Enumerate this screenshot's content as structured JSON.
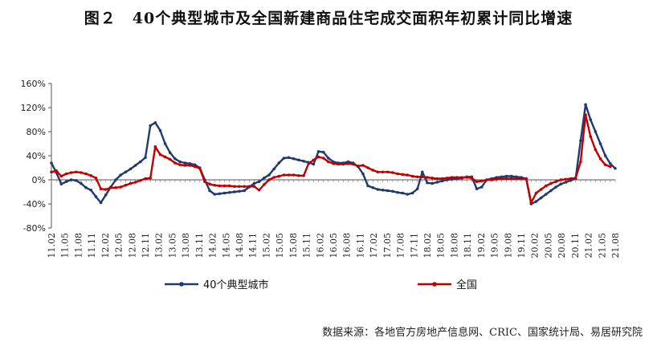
{
  "title": "图２　40个典型城市及全国新建商品住宅成交面积年初累计同比增速",
  "source": "数据来源：各地官方房地产信息网、CRIC、国家统计局、易居研究院",
  "colors": {
    "series1": "#1F3A6E",
    "series2": "#C00000"
  },
  "chart_data": {
    "type": "line",
    "title": "图２　40个典型城市及全国新建商品住宅成交面积年初累计同比增速",
    "xlabel": "",
    "ylabel": "",
    "ylim": [
      -80,
      160
    ],
    "yticks": [
      "160%",
      "120%",
      "80%",
      "40%",
      "0%",
      "-40%",
      "-80%"
    ],
    "grid": false,
    "legend": "bottom",
    "x_labels": [
      "11.02",
      "11.05",
      "11.08",
      "11.11",
      "12.02",
      "12.05",
      "12.08",
      "12.11",
      "13.02",
      "13.05",
      "13.08",
      "13.11",
      "14.02",
      "14.05",
      "14.08",
      "14.11",
      "15.02",
      "15.05",
      "15.08",
      "15.11",
      "16.02",
      "16.05",
      "16.08",
      "16.11",
      "17.02",
      "17.05",
      "17.08",
      "17.11",
      "18.02",
      "18.05",
      "18.08",
      "18.11",
      "19.02",
      "19.05",
      "19.08",
      "19.11",
      "20.02",
      "20.05",
      "20.08",
      "20.11",
      "21.02",
      "21.05",
      "21.08"
    ],
    "series": [
      {
        "name": "40个典型城市",
        "values": [
          28,
          12,
          -7,
          -3,
          0,
          -1,
          -6,
          -13,
          -17,
          -28,
          -38,
          -25,
          -12,
          0,
          8,
          13,
          18,
          24,
          30,
          37,
          90,
          95,
          82,
          60,
          45,
          35,
          30,
          28,
          27,
          25,
          20,
          0,
          -18,
          -24,
          -23,
          -22,
          -21,
          -20,
          -19,
          -18,
          -12,
          -6,
          -3,
          3,
          8,
          18,
          28,
          36,
          37,
          35,
          33,
          31,
          29,
          26,
          47,
          46,
          36,
          30,
          28,
          28,
          30,
          28,
          22,
          10,
          -10,
          -13,
          -16,
          -17,
          -18,
          -19,
          -21,
          -22,
          -24,
          -22,
          -15,
          13,
          -5,
          -6,
          -4,
          -2,
          0,
          1,
          2,
          3,
          5,
          5,
          -15,
          -12,
          0,
          2,
          4,
          5,
          6,
          6,
          5,
          4,
          2,
          -40,
          -36,
          -30,
          -24,
          -18,
          -12,
          -7,
          -4,
          -1,
          2,
          65,
          125,
          100,
          80,
          60,
          40,
          27,
          19
        ]
      },
      {
        "name": "全国",
        "values": [
          13,
          15,
          6,
          10,
          12,
          13,
          12,
          10,
          7,
          3,
          -15,
          -16,
          -13,
          -13,
          -12,
          -9,
          -6,
          -4,
          -1,
          2,
          3,
          55,
          42,
          38,
          34,
          28,
          25,
          24,
          24,
          22,
          19,
          -3,
          -7,
          -9,
          -10,
          -10,
          -10,
          -11,
          -11,
          -11,
          -11,
          -11,
          -17,
          -8,
          0,
          4,
          6,
          8,
          8,
          8,
          7,
          7,
          27,
          33,
          38,
          36,
          30,
          27,
          26,
          26,
          27,
          26,
          23,
          24,
          20,
          16,
          13,
          13,
          13,
          12,
          10,
          9,
          8,
          6,
          5,
          5,
          4,
          3,
          2,
          2,
          3,
          4,
          4,
          4,
          4,
          3,
          -3,
          -2,
          0,
          0,
          1,
          2,
          2,
          2,
          2,
          2,
          2,
          -38,
          -22,
          -16,
          -10,
          -6,
          -3,
          0,
          1,
          2,
          3,
          30,
          108,
          72,
          50,
          35,
          25,
          22
        ]
      }
    ]
  },
  "legend": {
    "items": [
      "40个典型城市",
      "全国"
    ]
  }
}
